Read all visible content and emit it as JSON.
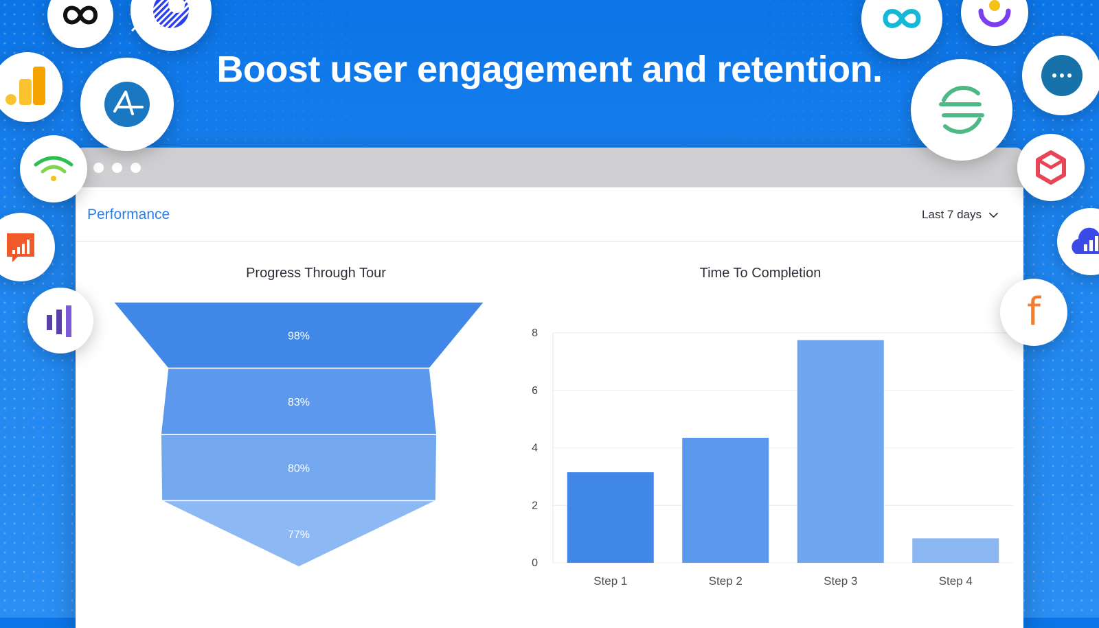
{
  "headline": "Boost user engagement and retention.",
  "window": {
    "section_title": "Performance",
    "date_range": {
      "selected": "Last 7 days"
    }
  },
  "colors": {
    "background": "#0b74e6",
    "accent": "#2f7de1",
    "funnel": [
      "#4187e8",
      "#5c99ec",
      "#73a8ef",
      "#8cb9f3"
    ],
    "bars": [
      "#4187e8",
      "#5c99ec",
      "#6ea7ef",
      "#8ab6f2"
    ]
  },
  "logos": [
    {
      "name": "infinity-loop-icon",
      "color": "#111111"
    },
    {
      "name": "striped-ring-logo-icon",
      "color": "#2b3ff0"
    },
    {
      "name": "bar-chart-orange-icon",
      "color": "#f6a300"
    },
    {
      "name": "amplitude-icon",
      "color": "#1a78c2"
    },
    {
      "name": "wifi-signal-icon",
      "color": "#2bbf4f"
    },
    {
      "name": "chart-speech-bubble-icon",
      "color": "#f0592a"
    },
    {
      "name": "purple-bars-icon",
      "color": "#5b3fa8"
    },
    {
      "name": "teal-infinity-icon",
      "color": "#16b8d8"
    },
    {
      "name": "smile-ring-icon",
      "color": "#7a3ff2"
    },
    {
      "name": "chat-bubble-icon",
      "color": "#1672a8"
    },
    {
      "name": "segment-icon",
      "color": "#4fb986"
    },
    {
      "name": "hexagon-box-icon",
      "color": "#e84557"
    },
    {
      "name": "cloud-chart-icon",
      "color": "#3b4be8"
    },
    {
      "name": "letter-f-icon",
      "color": "#f57c2c",
      "glyph": "f"
    }
  ],
  "chart_data": [
    {
      "type": "funnel",
      "title": "Progress Through Tour",
      "stages": [
        {
          "label": "98%",
          "value": 98
        },
        {
          "label": "83%",
          "value": 83
        },
        {
          "label": "80%",
          "value": 80
        },
        {
          "label": "77%",
          "value": 77
        }
      ]
    },
    {
      "type": "bar",
      "title": "Time To Completion",
      "categories": [
        "Step 1",
        "Step 2",
        "Step 3",
        "Step 4"
      ],
      "values": [
        3.15,
        4.35,
        7.75,
        0.85
      ],
      "ylim": [
        0,
        8
      ],
      "yticks": [
        0,
        2,
        4,
        6,
        8
      ],
      "grid": true,
      "xlabel": "",
      "ylabel": ""
    }
  ]
}
